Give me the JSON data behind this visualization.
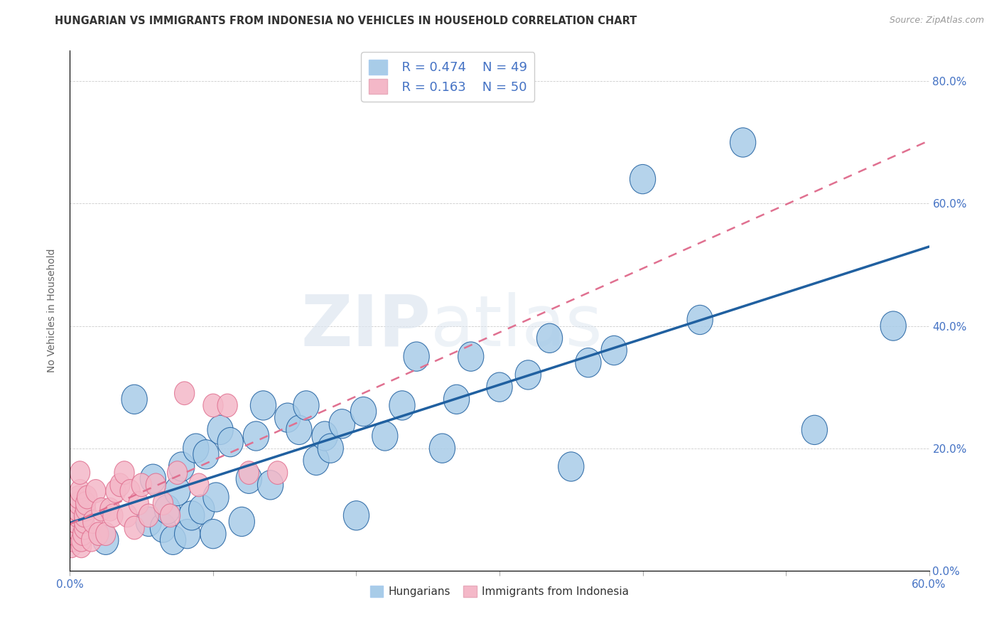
{
  "title": "HUNGARIAN VS IMMIGRANTS FROM INDONESIA NO VEHICLES IN HOUSEHOLD CORRELATION CHART",
  "source": "Source: ZipAtlas.com",
  "ylabel": "No Vehicles in Household",
  "yticks": [
    "0.0%",
    "20.0%",
    "40.0%",
    "60.0%",
    "80.0%"
  ],
  "ytick_vals": [
    0.0,
    0.2,
    0.4,
    0.6,
    0.8
  ],
  "xlim": [
    0,
    0.6
  ],
  "ylim": [
    0,
    0.85
  ],
  "legend_r1": "R = 0.474",
  "legend_n1": "N = 49",
  "legend_r2": "R = 0.163",
  "legend_n2": "N = 50",
  "color_blue": "#a8cce8",
  "color_pink": "#f4b8c8",
  "color_line_blue": "#2060a0",
  "color_line_pink": "#e07090",
  "blue_scatter_x": [
    0.025,
    0.045,
    0.055,
    0.058,
    0.065,
    0.068,
    0.072,
    0.075,
    0.078,
    0.082,
    0.085,
    0.088,
    0.092,
    0.095,
    0.1,
    0.102,
    0.105,
    0.112,
    0.12,
    0.125,
    0.13,
    0.135,
    0.14,
    0.152,
    0.16,
    0.165,
    0.172,
    0.178,
    0.182,
    0.19,
    0.2,
    0.205,
    0.22,
    0.232,
    0.242,
    0.26,
    0.27,
    0.28,
    0.3,
    0.32,
    0.335,
    0.35,
    0.362,
    0.38,
    0.4,
    0.44,
    0.47,
    0.52,
    0.575
  ],
  "blue_scatter_y": [
    0.05,
    0.28,
    0.08,
    0.15,
    0.07,
    0.1,
    0.05,
    0.13,
    0.17,
    0.06,
    0.09,
    0.2,
    0.1,
    0.19,
    0.06,
    0.12,
    0.23,
    0.21,
    0.08,
    0.15,
    0.22,
    0.27,
    0.14,
    0.25,
    0.23,
    0.27,
    0.18,
    0.22,
    0.2,
    0.24,
    0.09,
    0.26,
    0.22,
    0.27,
    0.35,
    0.2,
    0.28,
    0.35,
    0.3,
    0.32,
    0.38,
    0.17,
    0.34,
    0.36,
    0.64,
    0.41,
    0.7,
    0.23,
    0.4
  ],
  "pink_scatter_x": [
    0.001,
    0.002,
    0.003,
    0.003,
    0.004,
    0.004,
    0.004,
    0.005,
    0.005,
    0.005,
    0.006,
    0.006,
    0.007,
    0.007,
    0.008,
    0.008,
    0.009,
    0.01,
    0.01,
    0.01,
    0.011,
    0.011,
    0.012,
    0.015,
    0.016,
    0.018,
    0.02,
    0.022,
    0.025,
    0.028,
    0.03,
    0.032,
    0.035,
    0.038,
    0.04,
    0.042,
    0.045,
    0.048,
    0.05,
    0.055,
    0.06,
    0.065,
    0.07,
    0.075,
    0.08,
    0.09,
    0.1,
    0.11,
    0.125,
    0.145
  ],
  "pink_scatter_y": [
    0.04,
    0.05,
    0.06,
    0.07,
    0.07,
    0.08,
    0.08,
    0.09,
    0.1,
    0.1,
    0.11,
    0.12,
    0.13,
    0.16,
    0.04,
    0.05,
    0.06,
    0.07,
    0.08,
    0.09,
    0.1,
    0.11,
    0.12,
    0.05,
    0.08,
    0.13,
    0.06,
    0.1,
    0.06,
    0.1,
    0.09,
    0.13,
    0.14,
    0.16,
    0.09,
    0.13,
    0.07,
    0.11,
    0.14,
    0.09,
    0.14,
    0.11,
    0.09,
    0.16,
    0.29,
    0.14,
    0.27,
    0.27,
    0.16,
    0.16
  ]
}
